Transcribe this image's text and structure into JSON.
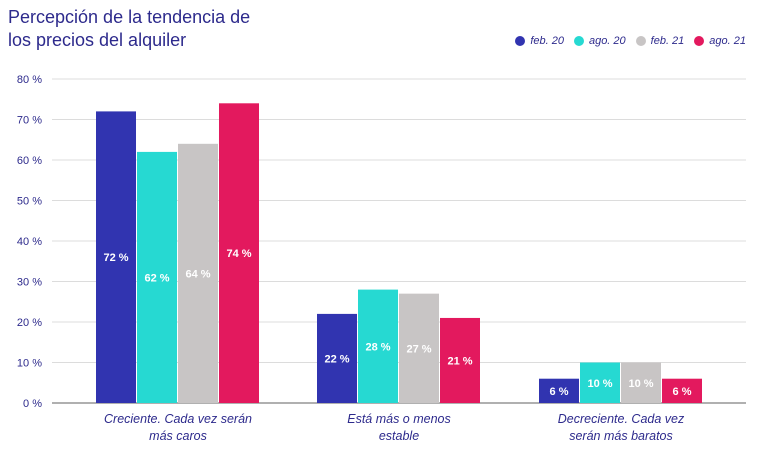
{
  "title_lines": [
    "Percepción de la tendencia de",
    "los precios del alquiler"
  ],
  "colors": {
    "feb20": "#3134b0",
    "ago20": "#26d9d2",
    "feb21": "#c8c5c5",
    "ago21": "#e3195e",
    "text": "#2d2a8c",
    "grid": "#d0d0d0",
    "axis": "#808080"
  },
  "chart_data": {
    "type": "bar",
    "title": "Percepción de la tendencia de los precios del alquiler",
    "xlabel": "",
    "ylabel": "",
    "ylim": [
      0,
      80
    ],
    "yticks": [
      0,
      10,
      20,
      30,
      40,
      50,
      60,
      70,
      80
    ],
    "ytick_labels": [
      "0 %",
      "10 %",
      "20 %",
      "30 %",
      "40 %",
      "50 %",
      "60 %",
      "70 %",
      "80 %"
    ],
    "grid": true,
    "legend_position": "top-right",
    "categories": [
      [
        "Creciente. Cada vez serán",
        "más caros"
      ],
      [
        "Está más o menos",
        "estable"
      ],
      [
        "Decreciente. Cada vez",
        "serán más baratos"
      ]
    ],
    "series": [
      {
        "name": "feb. 20",
        "color": "#3134b0",
        "values": [
          72,
          22,
          6
        ],
        "labels": [
          "72 %",
          "22 %",
          "6 %"
        ]
      },
      {
        "name": "ago. 20",
        "color": "#26d9d2",
        "values": [
          62,
          28,
          10
        ],
        "labels": [
          "62 %",
          "28 %",
          "10 %"
        ]
      },
      {
        "name": "feb. 21",
        "color": "#c8c5c5",
        "values": [
          64,
          27,
          10
        ],
        "labels": [
          "64 %",
          "27 %",
          "10 %"
        ]
      },
      {
        "name": "ago. 21",
        "color": "#e3195e",
        "values": [
          74,
          21,
          6
        ],
        "labels": [
          "74 %",
          "21 %",
          "6 %"
        ]
      }
    ]
  }
}
